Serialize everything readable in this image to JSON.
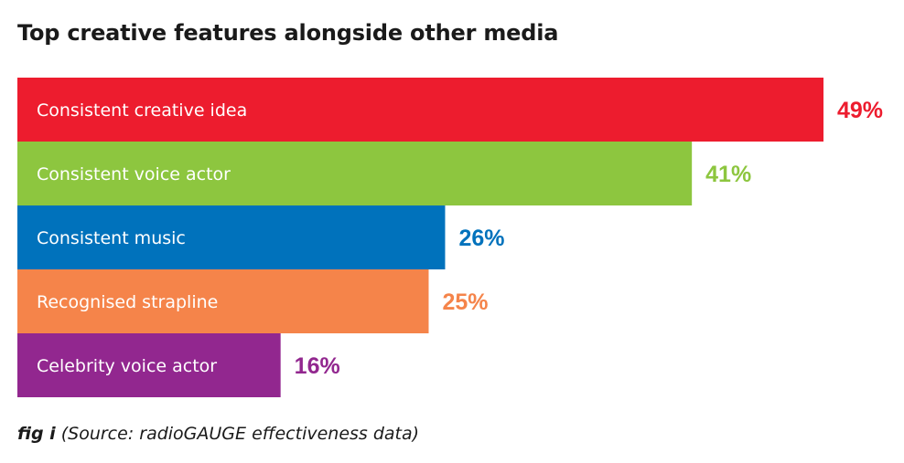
{
  "chart_data": {
    "type": "bar",
    "orientation": "horizontal",
    "title": "Top creative features alongside other media",
    "categories": [
      "Consistent creative idea",
      "Consistent voice actor",
      "Consistent music",
      "Recognised strapline",
      "Celebrity voice actor"
    ],
    "values": [
      49,
      41,
      26,
      25,
      16
    ],
    "value_labels": [
      "49%",
      "41%",
      "26%",
      "25%",
      "16%"
    ],
    "colors": [
      "#ed1c2e",
      "#8dc63f",
      "#0072bc",
      "#f5844a",
      "#92278f"
    ],
    "xlim": [
      0,
      49
    ],
    "grid": false,
    "legend": "none"
  },
  "caption": {
    "label": "fig i",
    "text": "(Source: radioGAUGE effectiveness data)"
  }
}
